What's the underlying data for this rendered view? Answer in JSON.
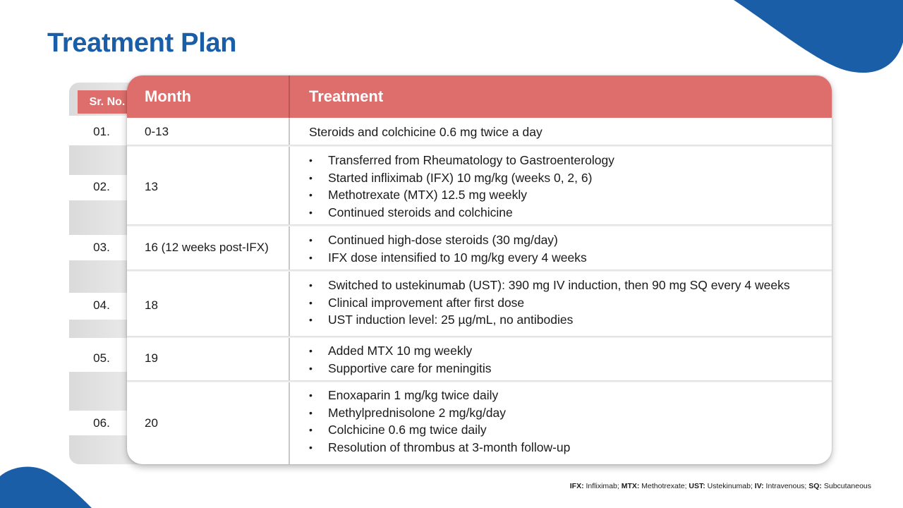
{
  "title": "Treatment Plan",
  "colors": {
    "title": "#1a5ea8",
    "header": "#de6e6c",
    "accent_blue": "#1a5ea8"
  },
  "table": {
    "headers": {
      "sr": "Sr. No.",
      "month": "Month",
      "treatment": "Treatment"
    },
    "rows": [
      {
        "sr": "01.",
        "month": "0-13",
        "treatment": [
          "Steroids and colchicine 0.6 mg twice a day"
        ]
      },
      {
        "sr": "02.",
        "month": "13",
        "treatment": [
          "Transferred from Rheumatology to Gastroenterology",
          "Started infliximab (IFX) 10 mg/kg (weeks 0, 2, 6)",
          "Methotrexate (MTX) 12.5 mg weekly",
          "Continued steroids and colchicine"
        ]
      },
      {
        "sr": "03.",
        "month": "16 (12 weeks post-IFX)",
        "treatment": [
          "Continued high-dose steroids (30 mg/day)",
          "IFX dose intensified to 10 mg/kg every 4 weeks"
        ]
      },
      {
        "sr": "04.",
        "month": "18",
        "treatment": [
          "Switched to ustekinumab (UST): 390 mg IV induction, then 90 mg SQ every 4 weeks",
          "Clinical improvement after first dose",
          "UST induction level: 25 µg/mL, no antibodies"
        ]
      },
      {
        "sr": "05.",
        "month": "19",
        "treatment": [
          "Added MTX 10 mg weekly",
          "Supportive care for meningitis"
        ]
      },
      {
        "sr": "06.",
        "month": "20",
        "treatment": [
          "Enoxaparin 1 mg/kg twice daily",
          "Methylprednisolone 2 mg/kg/day",
          "Colchicine 0.6 mg twice daily",
          "Resolution of thrombus at 3-month follow-up"
        ]
      }
    ]
  },
  "footnote": [
    {
      "abbr": "IFX:",
      "text": " Infliximab; "
    },
    {
      "abbr": "MTX:",
      "text": " Methotrexate; "
    },
    {
      "abbr": "UST:",
      "text": " Ustekinumab; "
    },
    {
      "abbr": "IV:",
      "text": " Intravenous; "
    },
    {
      "abbr": "SQ:",
      "text": " Subcutaneous"
    }
  ]
}
